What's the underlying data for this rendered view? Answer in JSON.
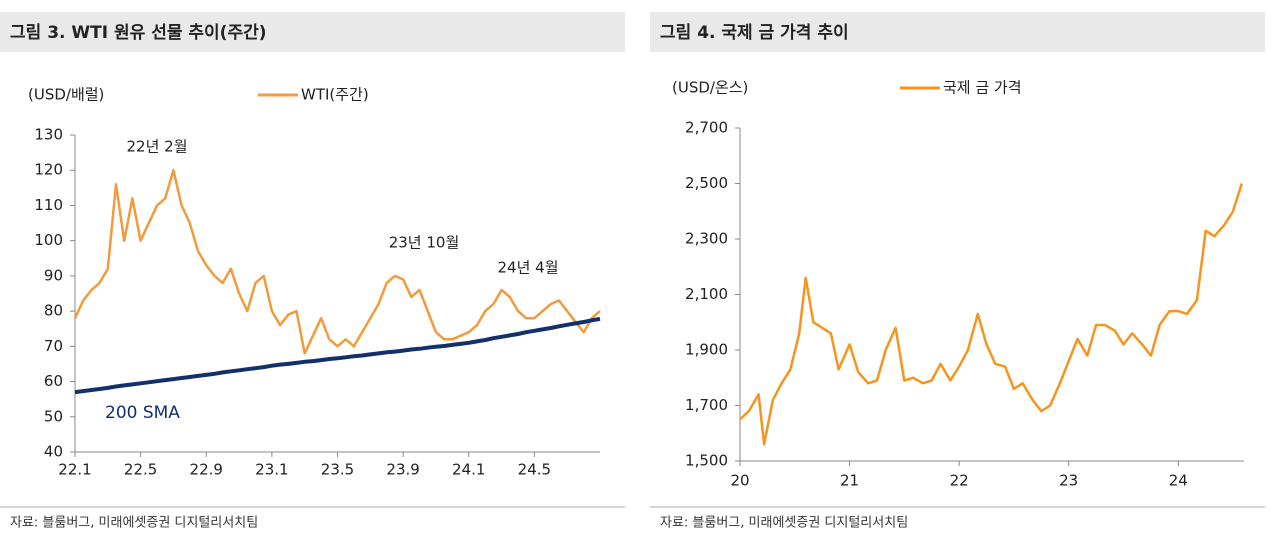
{
  "chart_data": [
    {
      "type": "line",
      "title": "그림 3. WTI 원유 선물 추이(주간)",
      "y_label": "(USD/배럴)",
      "source": "자료: 블룸버그, 미래에셋증권 디지털리서치팀",
      "categories": [
        "22.1",
        null,
        null,
        null,
        null,
        null,
        null,
        null,
        "22.5",
        null,
        null,
        null,
        null,
        null,
        null,
        null,
        "22.9",
        null,
        null,
        null,
        null,
        null,
        null,
        null,
        "23.1",
        null,
        null,
        null,
        null,
        null,
        null,
        null,
        "23.5",
        null,
        null,
        null,
        null,
        null,
        null,
        null,
        "23.9",
        null,
        null,
        null,
        null,
        null,
        null,
        null,
        "24.1",
        null,
        null,
        null,
        null,
        null,
        null,
        null,
        "24.5",
        null,
        null,
        null,
        null,
        null,
        null,
        null,
        null
      ],
      "series": [
        {
          "name": "WTI(주간)",
          "color": "#f39a3c",
          "values": [
            78,
            83,
            86,
            88,
            92,
            116,
            100,
            112,
            100,
            105,
            110,
            112,
            120,
            110,
            105,
            97,
            93,
            90,
            88,
            92,
            85,
            80,
            88,
            90,
            80,
            76,
            79,
            80,
            68,
            73,
            78,
            72,
            70,
            72,
            70,
            74,
            78,
            82,
            88,
            90,
            89,
            84,
            86,
            80,
            74,
            72,
            72,
            73,
            74,
            76,
            80,
            82,
            86,
            84,
            80,
            78,
            78,
            80,
            82,
            83,
            80,
            77,
            74,
            78,
            80
          ]
        },
        {
          "name": "200 SMA",
          "color": "#13306b",
          "legend": false,
          "values": [
            57,
            57.3,
            57.6,
            57.9,
            58.2,
            58.6,
            58.9,
            59.2,
            59.5,
            59.8,
            60.1,
            60.4,
            60.7,
            61,
            61.3,
            61.6,
            61.9,
            62.2,
            62.6,
            62.9,
            63.2,
            63.5,
            63.8,
            64.1,
            64.5,
            64.8,
            65,
            65.3,
            65.6,
            65.8,
            66.1,
            66.4,
            66.6,
            66.9,
            67.2,
            67.4,
            67.7,
            68,
            68.3,
            68.5,
            68.8,
            69.1,
            69.3,
            69.6,
            69.9,
            70.1,
            70.4,
            70.7,
            71,
            71.4,
            71.8,
            72.3,
            72.7,
            73.1,
            73.5,
            74,
            74.4,
            74.8,
            75.2,
            75.7,
            76.1,
            76.5,
            76.9,
            77.4,
            77.8
          ]
        }
      ],
      "ylim": [
        40,
        130
      ],
      "yticks": [
        40,
        50,
        60,
        70,
        80,
        90,
        100,
        110,
        120,
        130
      ],
      "annotations": [
        "22년 2월",
        "23년 10월",
        "24년 4월"
      ]
    },
    {
      "type": "line",
      "title": "그림 4. 국제 금 가격 추이",
      "y_label": "(USD/온스)",
      "source": "자료: 블룸버그, 미래에셋증권 디지털리서치팀",
      "x": [
        20.0,
        20.08,
        20.17,
        20.22,
        20.3,
        20.38,
        20.46,
        20.54,
        20.6,
        20.67,
        20.75,
        20.83,
        20.9,
        21.0,
        21.08,
        21.17,
        21.25,
        21.33,
        21.42,
        21.5,
        21.58,
        21.67,
        21.75,
        21.83,
        21.92,
        22.0,
        22.08,
        22.17,
        22.25,
        22.33,
        22.42,
        22.5,
        22.58,
        22.67,
        22.75,
        22.83,
        22.92,
        23.0,
        23.08,
        23.17,
        23.25,
        23.33,
        23.42,
        23.5,
        23.58,
        23.67,
        23.75,
        23.83,
        23.92,
        24.0,
        24.08,
        24.17,
        24.25,
        24.33,
        24.42,
        24.5,
        24.58
      ],
      "series": [
        {
          "name": "국제 금 가격",
          "color": "#f7941d",
          "values": [
            1650,
            1680,
            1740,
            1560,
            1720,
            1780,
            1830,
            1960,
            2160,
            2000,
            1980,
            1960,
            1830,
            1920,
            1820,
            1780,
            1790,
            1900,
            1980,
            1790,
            1800,
            1780,
            1790,
            1850,
            1790,
            1840,
            1900,
            2030,
            1920,
            1850,
            1840,
            1760,
            1780,
            1720,
            1680,
            1700,
            1780,
            1860,
            1940,
            1880,
            1990,
            1990,
            1970,
            1920,
            1960,
            1920,
            1880,
            1990,
            2040,
            2040,
            2030,
            2080,
            2330,
            2310,
            2350,
            2400,
            2500
          ]
        }
      ],
      "xlim": [
        20,
        24.6
      ],
      "xticks": [
        20,
        21,
        22,
        23,
        24
      ],
      "ylim": [
        1500,
        2700
      ],
      "yticks": [
        {
          "value": 1500,
          "label": "1,500"
        },
        {
          "value": 1700,
          "label": "1,700"
        },
        {
          "value": 1900,
          "label": "1,900"
        },
        {
          "value": 2100,
          "label": "2,100"
        },
        {
          "value": 2300,
          "label": "2,300"
        },
        {
          "value": 2500,
          "label": "2,500"
        },
        {
          "value": 2700,
          "label": "2,700"
        }
      ]
    }
  ]
}
